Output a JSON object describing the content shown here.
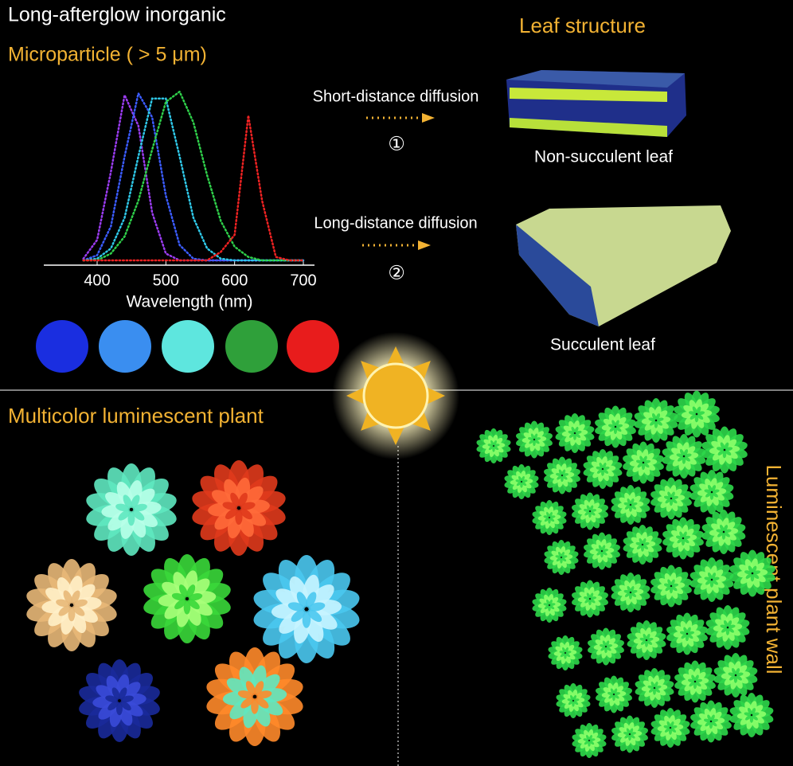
{
  "header": {
    "title": "Long-afterglow inorganic",
    "subtitle": "Microparticle ( > 5 μm)"
  },
  "leaf_structure": {
    "title": "Leaf structure",
    "short": {
      "label": "Short-distance diffusion",
      "step": "①",
      "leaf": "Non-succulent leaf"
    },
    "long": {
      "label": "Long-distance diffusion",
      "step": "②",
      "leaf": "Succulent leaf"
    }
  },
  "chart_data": {
    "type": "line",
    "x_label": "Wavelength (nm)",
    "x": [
      380,
      400,
      420,
      440,
      460,
      480,
      500,
      520,
      540,
      560,
      580,
      600,
      620,
      640,
      660,
      680,
      700
    ],
    "xlim": [
      340,
      720
    ],
    "xticks": [
      400,
      500,
      600,
      700
    ],
    "ylim": [
      0,
      1
    ],
    "series": [
      {
        "color": "#9a3cf0",
        "values": [
          0.01,
          0.12,
          0.52,
          0.97,
          0.79,
          0.28,
          0.04,
          0,
          0,
          0,
          0,
          0,
          0,
          0,
          0,
          0,
          0
        ]
      },
      {
        "color": "#3b5cff",
        "values": [
          0,
          0.03,
          0.2,
          0.61,
          0.98,
          0.84,
          0.38,
          0.09,
          0.01,
          0,
          0,
          0,
          0,
          0,
          0,
          0,
          0
        ]
      },
      {
        "color": "#2fc8e8",
        "values": [
          0,
          0.01,
          0.07,
          0.25,
          0.61,
          0.95,
          0.95,
          0.61,
          0.25,
          0.07,
          0.01,
          0,
          0,
          0,
          0,
          0,
          0
        ]
      },
      {
        "color": "#2fcf4a",
        "values": [
          0,
          0,
          0.04,
          0.14,
          0.35,
          0.65,
          0.93,
          0.99,
          0.81,
          0.5,
          0.23,
          0.08,
          0.02,
          0,
          0,
          0,
          0
        ]
      },
      {
        "color": "#ee2222",
        "values": [
          0,
          0,
          0,
          0,
          0,
          0,
          0,
          0,
          0,
          0,
          0.05,
          0.15,
          0.85,
          0.35,
          0.02,
          0,
          0
        ]
      }
    ]
  },
  "bottom": {
    "left_title": "Multicolor luminescent plant",
    "right_title": "Luminescent plant wall"
  }
}
